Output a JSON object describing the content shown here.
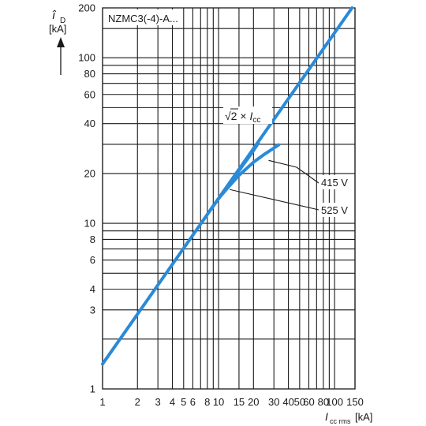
{
  "chart_data": {
    "type": "line",
    "title": "NZMC3(-4)-A...",
    "ylabel": {
      "symbol": "î",
      "sub": "D",
      "unit": "[kA]"
    },
    "xlabel": {
      "symbol": "I",
      "sub": "cc rms",
      "unit": "[kA]"
    },
    "x_scale": "log",
    "y_scale": "log",
    "xlim": [
      1,
      150
    ],
    "ylim": [
      1,
      200
    ],
    "x_ticks": [
      1,
      2,
      3,
      4,
      5,
      6,
      8,
      10,
      15,
      20,
      30,
      40,
      50,
      60,
      80,
      100,
      150
    ],
    "x_tick_labels": [
      "1",
      "2",
      "3",
      "4",
      "5",
      "6",
      "8",
      "10",
      "15",
      "20",
      "30",
      "40",
      "50",
      "60",
      "80",
      "100",
      "150"
    ],
    "y_ticks": [
      1,
      2,
      3,
      4,
      6,
      8,
      10,
      20,
      40,
      60,
      80,
      100,
      200
    ],
    "y_tick_labels": [
      "1",
      "",
      "3",
      "4",
      "6",
      "8",
      "10",
      "20",
      "40",
      "60",
      "80",
      "100",
      "200"
    ],
    "x_grid": [
      1,
      2,
      3,
      4,
      5,
      6,
      7,
      8,
      9,
      10,
      15,
      20,
      30,
      40,
      50,
      60,
      70,
      80,
      90,
      100,
      150
    ],
    "y_grid": [
      1,
      2,
      3,
      4,
      5,
      6,
      7,
      8,
      9,
      10,
      20,
      30,
      40,
      50,
      60,
      70,
      80,
      90,
      100,
      150,
      200
    ],
    "grid": true,
    "color": "#2a8ad8",
    "series": [
      {
        "name": "√2 × Icc",
        "x": [
          1,
          141.4
        ],
        "y": [
          1.414,
          200
        ]
      },
      {
        "name": "415 V",
        "x": [
          8.4,
          10,
          12,
          15,
          20,
          25,
          30,
          33
        ],
        "y": [
          11.9,
          14.1,
          16.4,
          19.5,
          23.4,
          26.2,
          28.5,
          29.8
        ]
      },
      {
        "name": "525 V",
        "x": [
          8.4,
          10,
          12,
          15,
          18,
          20,
          22
        ],
        "y": [
          11.9,
          14.1,
          16.8,
          20.8,
          24.8,
          27.5,
          30.5
        ]
      }
    ],
    "annotations": [
      {
        "text": "415 V",
        "target_x": 27,
        "target_y": 24
      },
      {
        "text": "525 V",
        "target_x": 12.5,
        "target_y": 16
      },
      {
        "text": "√2 × Icc"
      }
    ]
  }
}
